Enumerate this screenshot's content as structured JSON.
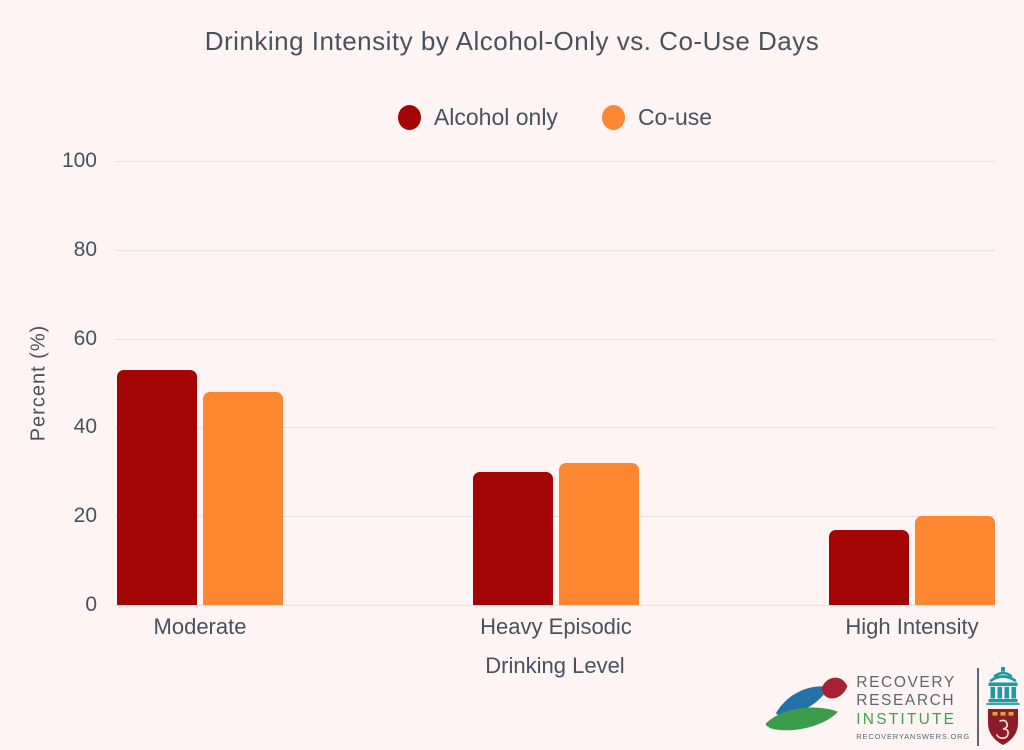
{
  "page": {
    "background": "#fdf4f3",
    "text_color": "#47525e",
    "gridline_color": "#e6dfdf"
  },
  "chart_data": {
    "type": "bar",
    "title": "Drinking Intensity by Alcohol-Only vs. Co-Use Days",
    "categories": [
      "Moderate",
      "Heavy Episodic",
      "High Intensity"
    ],
    "series": [
      {
        "name": "Alcohol only",
        "color": "#a30505",
        "values": [
          53,
          30,
          17
        ]
      },
      {
        "name": "Co-use",
        "color": "#fd8731",
        "values": [
          48,
          32,
          20
        ]
      }
    ],
    "xlabel": "Drinking Level",
    "ylabel": "Percent (%)",
    "ylim": [
      0,
      100
    ],
    "yticks": [
      0,
      20,
      40,
      60,
      80,
      100
    ],
    "grid": true,
    "legend_position": "top-center"
  },
  "logo": {
    "line1": "RECOVERY",
    "line2": "RESEARCH",
    "line3": "INSTITUTE",
    "url": "RECOVERYANSWERS.ORG",
    "colors": {
      "gray": "#5b6670",
      "green": "#44a04f",
      "teal": "#1d9aa3",
      "shield": "#8e1b28",
      "leaf_blue": "#2272a8",
      "leaf_red": "#a62134",
      "leaf_green": "#3d9c4b",
      "gold": "#d3a93c"
    }
  }
}
